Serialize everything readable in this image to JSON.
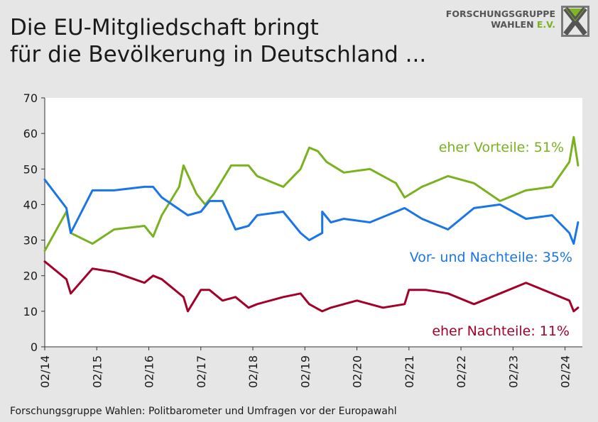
{
  "title_line1": "Die EU-Mitgliedschaft bringt",
  "title_line2": "für die Bevölkerung in Deutschland ...",
  "logo": {
    "line1": "FORSCHUNGSGRUPPE",
    "line2_a": "WAHLEN",
    "line2_b": "E.V."
  },
  "source": "Forschungsgruppe Wahlen: Politbarometer und Umfragen vor der Europawahl",
  "colors": {
    "vorteile": "#7ab21f",
    "beides": "#1a75e8",
    "nachteile": "#a3002a",
    "background": "#e6e6e6",
    "plot": "#ffffff"
  },
  "chart_data": {
    "type": "line",
    "title": "Die EU-Mitgliedschaft bringt für die Bevölkerung in Deutschland ...",
    "ylim": [
      0,
      70
    ],
    "yticks": [
      0,
      10,
      20,
      30,
      40,
      50,
      60,
      70
    ],
    "xlim": [
      "2014-02",
      "2024-06"
    ],
    "xticks": [
      "02/14",
      "02/15",
      "02/16",
      "02/17",
      "02/18",
      "02/19",
      "02/20",
      "02/21",
      "02/22",
      "02/23",
      "02/24"
    ],
    "grid": false,
    "series": [
      {
        "name": "eher Vorteile",
        "label": "eher Vorteile: 51%",
        "color": "#7ab21f",
        "points": [
          [
            "2014-02",
            27
          ],
          [
            "2014-07",
            38
          ],
          [
            "2014-08",
            32
          ],
          [
            "2015-01",
            29
          ],
          [
            "2015-06",
            33
          ],
          [
            "2016-01",
            34
          ],
          [
            "2016-03",
            31
          ],
          [
            "2016-05",
            37
          ],
          [
            "2016-09",
            45
          ],
          [
            "2016-10",
            51
          ],
          [
            "2017-01",
            43
          ],
          [
            "2017-03",
            40
          ],
          [
            "2017-05",
            43
          ],
          [
            "2017-09",
            51
          ],
          [
            "2018-01",
            51
          ],
          [
            "2018-03",
            48
          ],
          [
            "2018-09",
            45
          ],
          [
            "2019-01",
            50
          ],
          [
            "2019-03",
            56
          ],
          [
            "2019-05",
            55
          ],
          [
            "2019-07",
            52
          ],
          [
            "2019-11",
            49
          ],
          [
            "2020-05",
            50
          ],
          [
            "2020-11",
            46
          ],
          [
            "2021-01",
            42
          ],
          [
            "2021-05",
            45
          ],
          [
            "2021-11",
            48
          ],
          [
            "2022-05",
            46
          ],
          [
            "2022-11",
            41
          ],
          [
            "2023-05",
            44
          ],
          [
            "2023-11",
            45
          ],
          [
            "2024-03",
            52
          ],
          [
            "2024-04",
            59
          ],
          [
            "2024-05",
            51
          ]
        ]
      },
      {
        "name": "Vor- und Nachteile",
        "label": "Vor- und Nachteile: 35%",
        "color": "#1a75e8",
        "points": [
          [
            "2014-02",
            47
          ],
          [
            "2014-07",
            39
          ],
          [
            "2014-08",
            32
          ],
          [
            "2015-01",
            44
          ],
          [
            "2015-06",
            44
          ],
          [
            "2016-01",
            45
          ],
          [
            "2016-03",
            45
          ],
          [
            "2016-05",
            42
          ],
          [
            "2016-11",
            37
          ],
          [
            "2017-02",
            38
          ],
          [
            "2017-04",
            41
          ],
          [
            "2017-07",
            41
          ],
          [
            "2017-10",
            33
          ],
          [
            "2018-01",
            34
          ],
          [
            "2018-03",
            37
          ],
          [
            "2018-09",
            38
          ],
          [
            "2019-01",
            32
          ],
          [
            "2019-03",
            30
          ],
          [
            "2019-06",
            32
          ],
          [
            "2019-06",
            38
          ],
          [
            "2019-08",
            35
          ],
          [
            "2019-11",
            36
          ],
          [
            "2020-05",
            35
          ],
          [
            "2021-01",
            39
          ],
          [
            "2021-05",
            36
          ],
          [
            "2021-11",
            33
          ],
          [
            "2022-05",
            39
          ],
          [
            "2022-11",
            40
          ],
          [
            "2023-05",
            36
          ],
          [
            "2023-11",
            37
          ],
          [
            "2024-03",
            32
          ],
          [
            "2024-04",
            29
          ],
          [
            "2024-05",
            35
          ]
        ]
      },
      {
        "name": "eher Nachteile",
        "label": "eher Nachteile: 11%",
        "color": "#a3002a",
        "points": [
          [
            "2014-02",
            24
          ],
          [
            "2014-07",
            19
          ],
          [
            "2014-08",
            15
          ],
          [
            "2015-01",
            22
          ],
          [
            "2015-06",
            21
          ],
          [
            "2016-01",
            18
          ],
          [
            "2016-03",
            20
          ],
          [
            "2016-05",
            19
          ],
          [
            "2016-10",
            14
          ],
          [
            "2016-11",
            10
          ],
          [
            "2017-02",
            16
          ],
          [
            "2017-04",
            16
          ],
          [
            "2017-07",
            13
          ],
          [
            "2017-10",
            14
          ],
          [
            "2018-01",
            11
          ],
          [
            "2018-03",
            12
          ],
          [
            "2018-09",
            14
          ],
          [
            "2019-01",
            15
          ],
          [
            "2019-03",
            12
          ],
          [
            "2019-06",
            10
          ],
          [
            "2019-08",
            11
          ],
          [
            "2019-11",
            12
          ],
          [
            "2020-02",
            13
          ],
          [
            "2020-08",
            11
          ],
          [
            "2021-01",
            12
          ],
          [
            "2021-02",
            16
          ],
          [
            "2021-06",
            16
          ],
          [
            "2021-11",
            15
          ],
          [
            "2022-05",
            12
          ],
          [
            "2022-11",
            15
          ],
          [
            "2023-05",
            18
          ],
          [
            "2023-11",
            15
          ],
          [
            "2024-03",
            13
          ],
          [
            "2024-04",
            10
          ],
          [
            "2024-05",
            11
          ]
        ]
      }
    ]
  }
}
